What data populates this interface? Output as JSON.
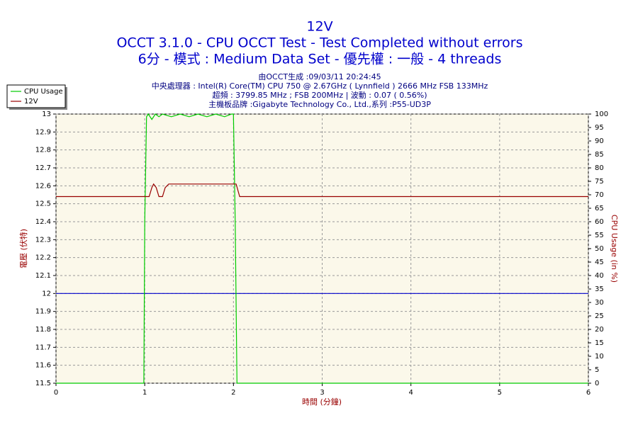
{
  "chart_data": {
    "type": "line",
    "title": "12V",
    "subtitle": [
      "OCCT 3.1.0 - CPU OCCT Test - Test Completed without errors",
      "6分 - 模式 : Medium Data Set - 優先權 : 一般 - 4 threads"
    ],
    "annotations": [
      "由OCCT生成 :09/03/11 20:24:45",
      "中央處理器 : Intel(R) Core(TM) CPU 750 @ 2.67GHz ( Lynnfield ) 2666 MHz FSB 133MHz",
      "超頻 : 3799.85 MHz ; FSB 200MHz | 波動 : 0.07 ( 0.56%)",
      "主機板品牌 :Gigabyte Technology Co., Ltd.,系列 :P55-UD3P"
    ],
    "x_label": "時間 (分鐘)",
    "y_label": "電壓 (伏特)",
    "y2_label": "CPU Usage (in %)",
    "xlim": [
      0,
      6
    ],
    "xticks": [
      0,
      1,
      2,
      3,
      4,
      5,
      6
    ],
    "ylim": [
      11.5,
      13
    ],
    "yticks": [
      11.5,
      11.6,
      11.7,
      11.8,
      11.9,
      12,
      12.1,
      12.2,
      12.3,
      12.4,
      12.5,
      12.6,
      12.7,
      12.8,
      12.9,
      13
    ],
    "y2lim": [
      0,
      100
    ],
    "y2ticks": [
      0,
      5,
      10,
      15,
      20,
      25,
      30,
      35,
      40,
      45,
      50,
      55,
      60,
      65,
      70,
      75,
      80,
      85,
      90,
      95,
      100
    ],
    "grid": true,
    "legend": "top-left",
    "reference_line": {
      "value": 12,
      "color": "#0000cc"
    },
    "series": [
      {
        "name": "CPU Usage",
        "color": "#00cc00",
        "axis": "y2",
        "x": [
          0,
          0.99,
          1.0,
          1.02,
          1.04,
          1.08,
          1.12,
          1.16,
          1.2,
          1.3,
          1.4,
          1.5,
          1.6,
          1.7,
          1.8,
          1.9,
          1.98,
          2.0,
          2.02,
          2.04,
          6
        ],
        "values": [
          0,
          0,
          60,
          99,
          100,
          98,
          100,
          99,
          100,
          99,
          100,
          99,
          100,
          99,
          100,
          99,
          100,
          100,
          60,
          0,
          0
        ]
      },
      {
        "name": "12V",
        "color": "#990000",
        "x": [
          0,
          1.05,
          1.08,
          1.1,
          1.13,
          1.16,
          1.2,
          1.23,
          1.27,
          2.0,
          2.03,
          2.07,
          6
        ],
        "values": [
          12.54,
          12.54,
          12.59,
          12.61,
          12.59,
          12.54,
          12.54,
          12.59,
          12.61,
          12.61,
          12.61,
          12.54,
          12.54
        ]
      }
    ]
  }
}
